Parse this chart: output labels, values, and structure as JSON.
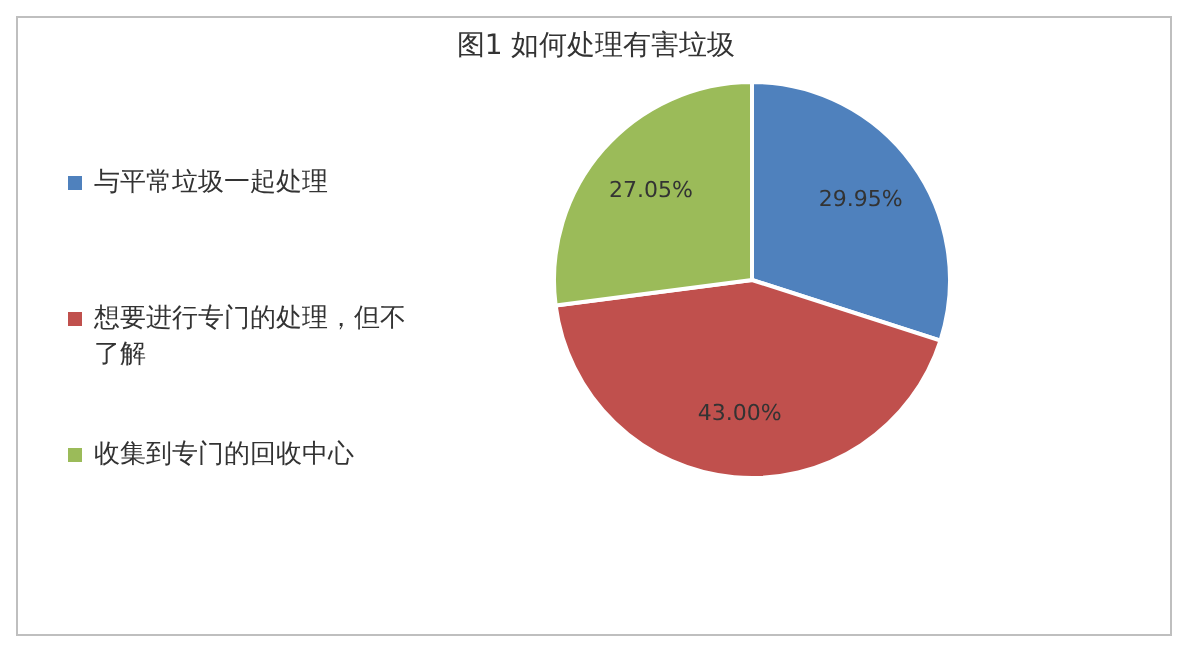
{
  "chart_data": {
    "type": "pie",
    "title": "图1 如何处理有害垃圾",
    "categories": [
      "与平常垃圾一起处理",
      "想要进行专门的处理，但不了解",
      "收集到专门的回收中心"
    ],
    "values": [
      29.95,
      43.0,
      27.05
    ],
    "colors": [
      "#4f81bd",
      "#c0504d",
      "#9bbb59"
    ],
    "value_labels": [
      "29.95%",
      "43.00%",
      "27.05%"
    ],
    "legend": "left"
  }
}
